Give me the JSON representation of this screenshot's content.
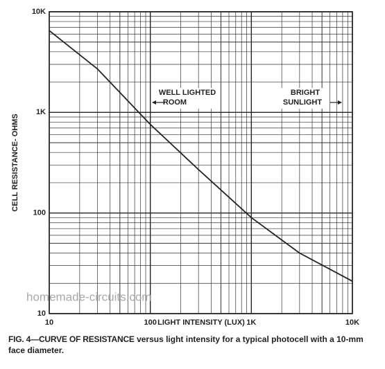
{
  "chart_data": {
    "type": "line",
    "x_label": "LIGHT INTENSITY (LUX)",
    "y_label": "CELL RESISTANCE- OHMS",
    "x": [
      10,
      30,
      100,
      300,
      1000,
      3000,
      10000
    ],
    "series": [
      {
        "color": "#222222",
        "values": [
          6500,
          2700,
          760,
          270,
          90,
          40,
          21
        ]
      }
    ],
    "xlim": [
      10,
      10000
    ],
    "ylim": [
      10,
      10000
    ],
    "xticks": [
      10,
      100,
      {
        "value": 1000,
        "label": "1K"
      },
      {
        "value": 10000,
        "label": "10K"
      }
    ],
    "yticks": [
      10,
      100,
      {
        "value": 1000,
        "label": "1K"
      },
      {
        "value": 10000,
        "label": "10K"
      }
    ],
    "xscale": "log",
    "yscale": "log",
    "grid": true,
    "annotations": [
      [
        "WELL LIGHTED",
        "ROOM"
      ],
      [
        "BRIGHT",
        "SUNLIGHT"
      ]
    ],
    "watermark": "homemade-circuits.com"
  },
  "caption": {
    "bold": "FIG. 4—CURVE OF RESISTANCE",
    "text": "versus light intensity for a typical photocell with a 10-mm face diameter."
  }
}
